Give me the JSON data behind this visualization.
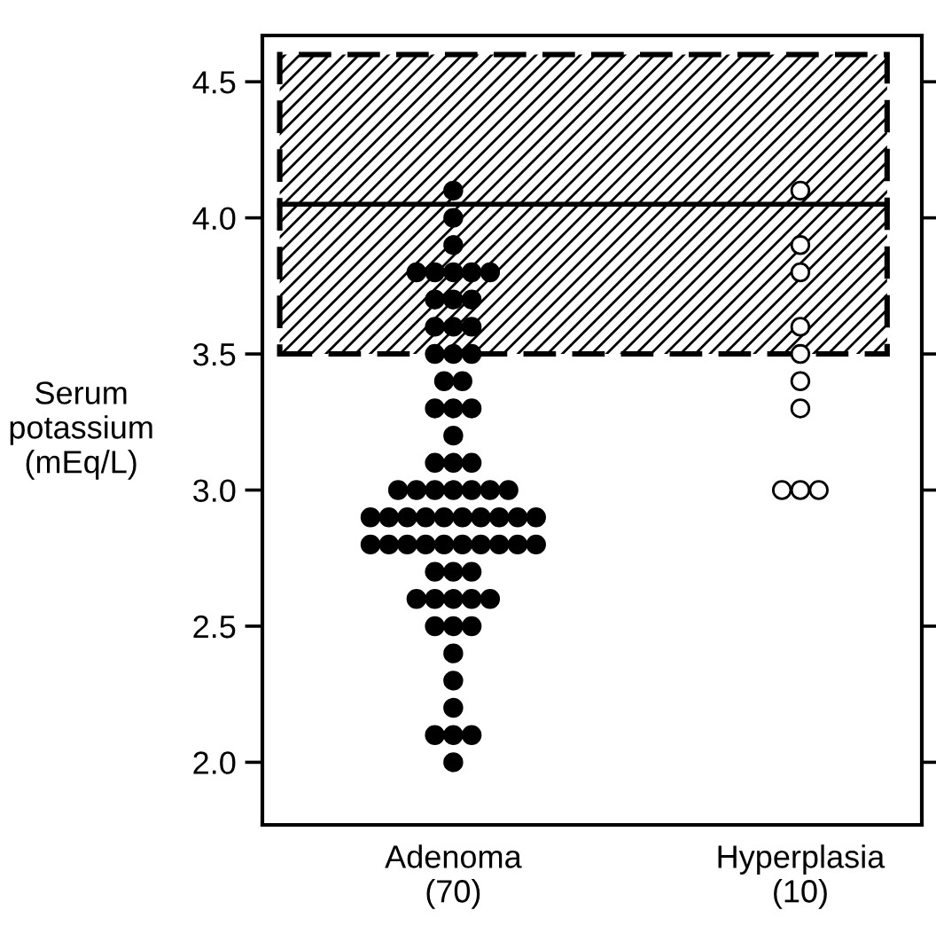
{
  "chart_data": {
    "type": "scatter",
    "ylabel": "Serum\npotassium\n(mEq/L)",
    "categories": [
      "Adenoma\n(70)",
      "Hyperplasia\n(10)"
    ],
    "ylim": [
      1.77,
      4.67
    ],
    "yticks": [
      {
        "value": 2.0,
        "label": "2.0"
      },
      {
        "value": 2.5,
        "label": "2.5"
      },
      {
        "value": 3.0,
        "label": "3.0"
      },
      {
        "value": 3.5,
        "label": "3.5"
      },
      {
        "value": 4.0,
        "label": "4.0"
      },
      {
        "value": 4.5,
        "label": "4.5"
      }
    ],
    "marker": "circle",
    "grid": false,
    "series": [
      {
        "color": "#000000",
        "x": [
          "Adenoma\n(70)",
          "Adenoma\n(70)",
          "Adenoma\n(70)",
          "Adenoma\n(70)",
          "Adenoma\n(70)",
          "Adenoma\n(70)",
          "Adenoma\n(70)",
          "Adenoma\n(70)",
          "Adenoma\n(70)",
          "Adenoma\n(70)",
          "Adenoma\n(70)",
          "Adenoma\n(70)",
          "Adenoma\n(70)",
          "Adenoma\n(70)",
          "Adenoma\n(70)",
          "Adenoma\n(70)",
          "Adenoma\n(70)",
          "Adenoma\n(70)",
          "Adenoma\n(70)",
          "Adenoma\n(70)",
          "Adenoma\n(70)",
          "Adenoma\n(70)",
          "Adenoma\n(70)",
          "Adenoma\n(70)",
          "Adenoma\n(70)",
          "Adenoma\n(70)",
          "Adenoma\n(70)",
          "Adenoma\n(70)",
          "Adenoma\n(70)",
          "Adenoma\n(70)",
          "Adenoma\n(70)",
          "Adenoma\n(70)",
          "Adenoma\n(70)",
          "Adenoma\n(70)",
          "Adenoma\n(70)",
          "Adenoma\n(70)",
          "Adenoma\n(70)",
          "Adenoma\n(70)",
          "Adenoma\n(70)",
          "Adenoma\n(70)",
          "Adenoma\n(70)",
          "Adenoma\n(70)",
          "Adenoma\n(70)",
          "Adenoma\n(70)",
          "Adenoma\n(70)",
          "Adenoma\n(70)",
          "Adenoma\n(70)",
          "Adenoma\n(70)",
          "Adenoma\n(70)",
          "Adenoma\n(70)",
          "Adenoma\n(70)",
          "Adenoma\n(70)",
          "Adenoma\n(70)",
          "Adenoma\n(70)",
          "Adenoma\n(70)",
          "Adenoma\n(70)",
          "Adenoma\n(70)",
          "Adenoma\n(70)",
          "Adenoma\n(70)",
          "Adenoma\n(70)",
          "Adenoma\n(70)",
          "Adenoma\n(70)",
          "Adenoma\n(70)",
          "Adenoma\n(70)",
          "Adenoma\n(70)",
          "Adenoma\n(70)",
          "Adenoma\n(70)",
          "Adenoma\n(70)",
          "Adenoma\n(70)",
          "Adenoma\n(70)",
          "Adenoma\n(70)"
        ],
        "values": [
          4.1,
          4.0,
          3.9,
          3.8,
          3.8,
          3.8,
          3.8,
          3.8,
          3.7,
          3.7,
          3.7,
          3.6,
          3.6,
          3.6,
          3.5,
          3.5,
          3.5,
          3.4,
          3.4,
          3.3,
          3.3,
          3.3,
          3.2,
          3.1,
          3.1,
          3.1,
          3.0,
          3.0,
          3.0,
          3.0,
          3.0,
          3.0,
          3.0,
          2.9,
          2.9,
          2.9,
          2.9,
          2.9,
          2.9,
          2.9,
          2.9,
          2.9,
          2.9,
          2.8,
          2.8,
          2.8,
          2.8,
          2.8,
          2.8,
          2.8,
          2.8,
          2.8,
          2.8,
          2.7,
          2.7,
          2.7,
          2.6,
          2.6,
          2.6,
          2.6,
          2.6,
          2.5,
          2.5,
          2.5,
          2.4,
          2.3,
          2.2,
          2.1,
          2.1,
          2.1,
          2.0
        ]
      },
      {
        "color": "#ffffff",
        "x": [
          "Hyperplasia\n(10)",
          "Hyperplasia\n(10)",
          "Hyperplasia\n(10)",
          "Hyperplasia\n(10)",
          "Hyperplasia\n(10)",
          "Hyperplasia\n(10)",
          "Hyperplasia\n(10)",
          "Hyperplasia\n(10)",
          "Hyperplasia\n(10)",
          "Hyperplasia\n(10)"
        ],
        "values": [
          4.1,
          3.9,
          3.8,
          3.6,
          3.5,
          3.4,
          3.3,
          3.0,
          3.0,
          3.0
        ]
      }
    ],
    "ref_lines": [
      {
        "axis": "y",
        "value": 4.05,
        "label": null,
        "color": "#000000",
        "line_style": "solid"
      }
    ],
    "bands": [
      {
        "axis": "y",
        "from": 3.5,
        "to": 4.6,
        "label": null,
        "color": "#000000"
      }
    ]
  }
}
